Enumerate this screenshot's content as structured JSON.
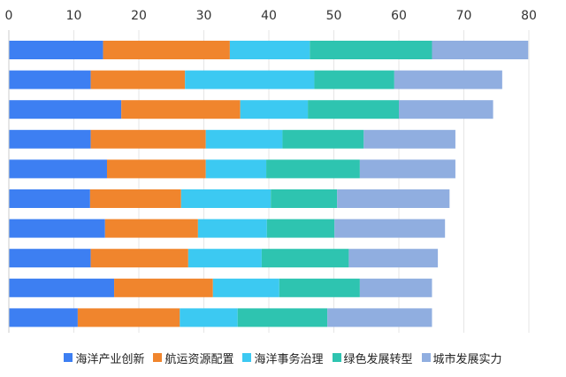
{
  "chart_data": {
    "type": "bar",
    "orientation": "horizontal",
    "stacked": true,
    "xlim": [
      0,
      80
    ],
    "xticks": [
      0,
      10,
      20,
      30,
      40,
      50,
      60,
      70,
      80
    ],
    "x_axis_position": "top",
    "grid": true,
    "legend_position": "bottom",
    "categories": [
      "",
      "",
      "",
      "",
      "",
      "",
      "",
      "",
      "",
      ""
    ],
    "series": [
      {
        "name": "海洋产业创新",
        "color": "#3D7FF2",
        "values": [
          14.5,
          12.6,
          17.3,
          12.6,
          15.1,
          12.5,
          14.8,
          12.6,
          16.2,
          10.6
        ]
      },
      {
        "name": "航运资源配置",
        "color": "#F0852D",
        "values": [
          19.5,
          14.5,
          18.3,
          17.7,
          15.2,
          14.0,
          14.3,
          15.0,
          15.2,
          15.7
        ]
      },
      {
        "name": "海洋事务治理",
        "color": "#3CC9F2",
        "values": [
          12.3,
          19.9,
          10.4,
          11.8,
          9.3,
          13.8,
          10.6,
          11.3,
          10.2,
          8.9
        ]
      },
      {
        "name": "绿色发展转型",
        "color": "#2EC4B0",
        "values": [
          18.8,
          12.3,
          14.0,
          12.5,
          14.4,
          10.2,
          10.4,
          13.4,
          12.4,
          13.8
        ]
      },
      {
        "name": "城市发展实力",
        "color": "#90AEE0",
        "values": [
          14.8,
          16.6,
          14.5,
          14.1,
          14.7,
          17.3,
          17.0,
          13.7,
          11.1,
          16.1
        ]
      }
    ]
  }
}
